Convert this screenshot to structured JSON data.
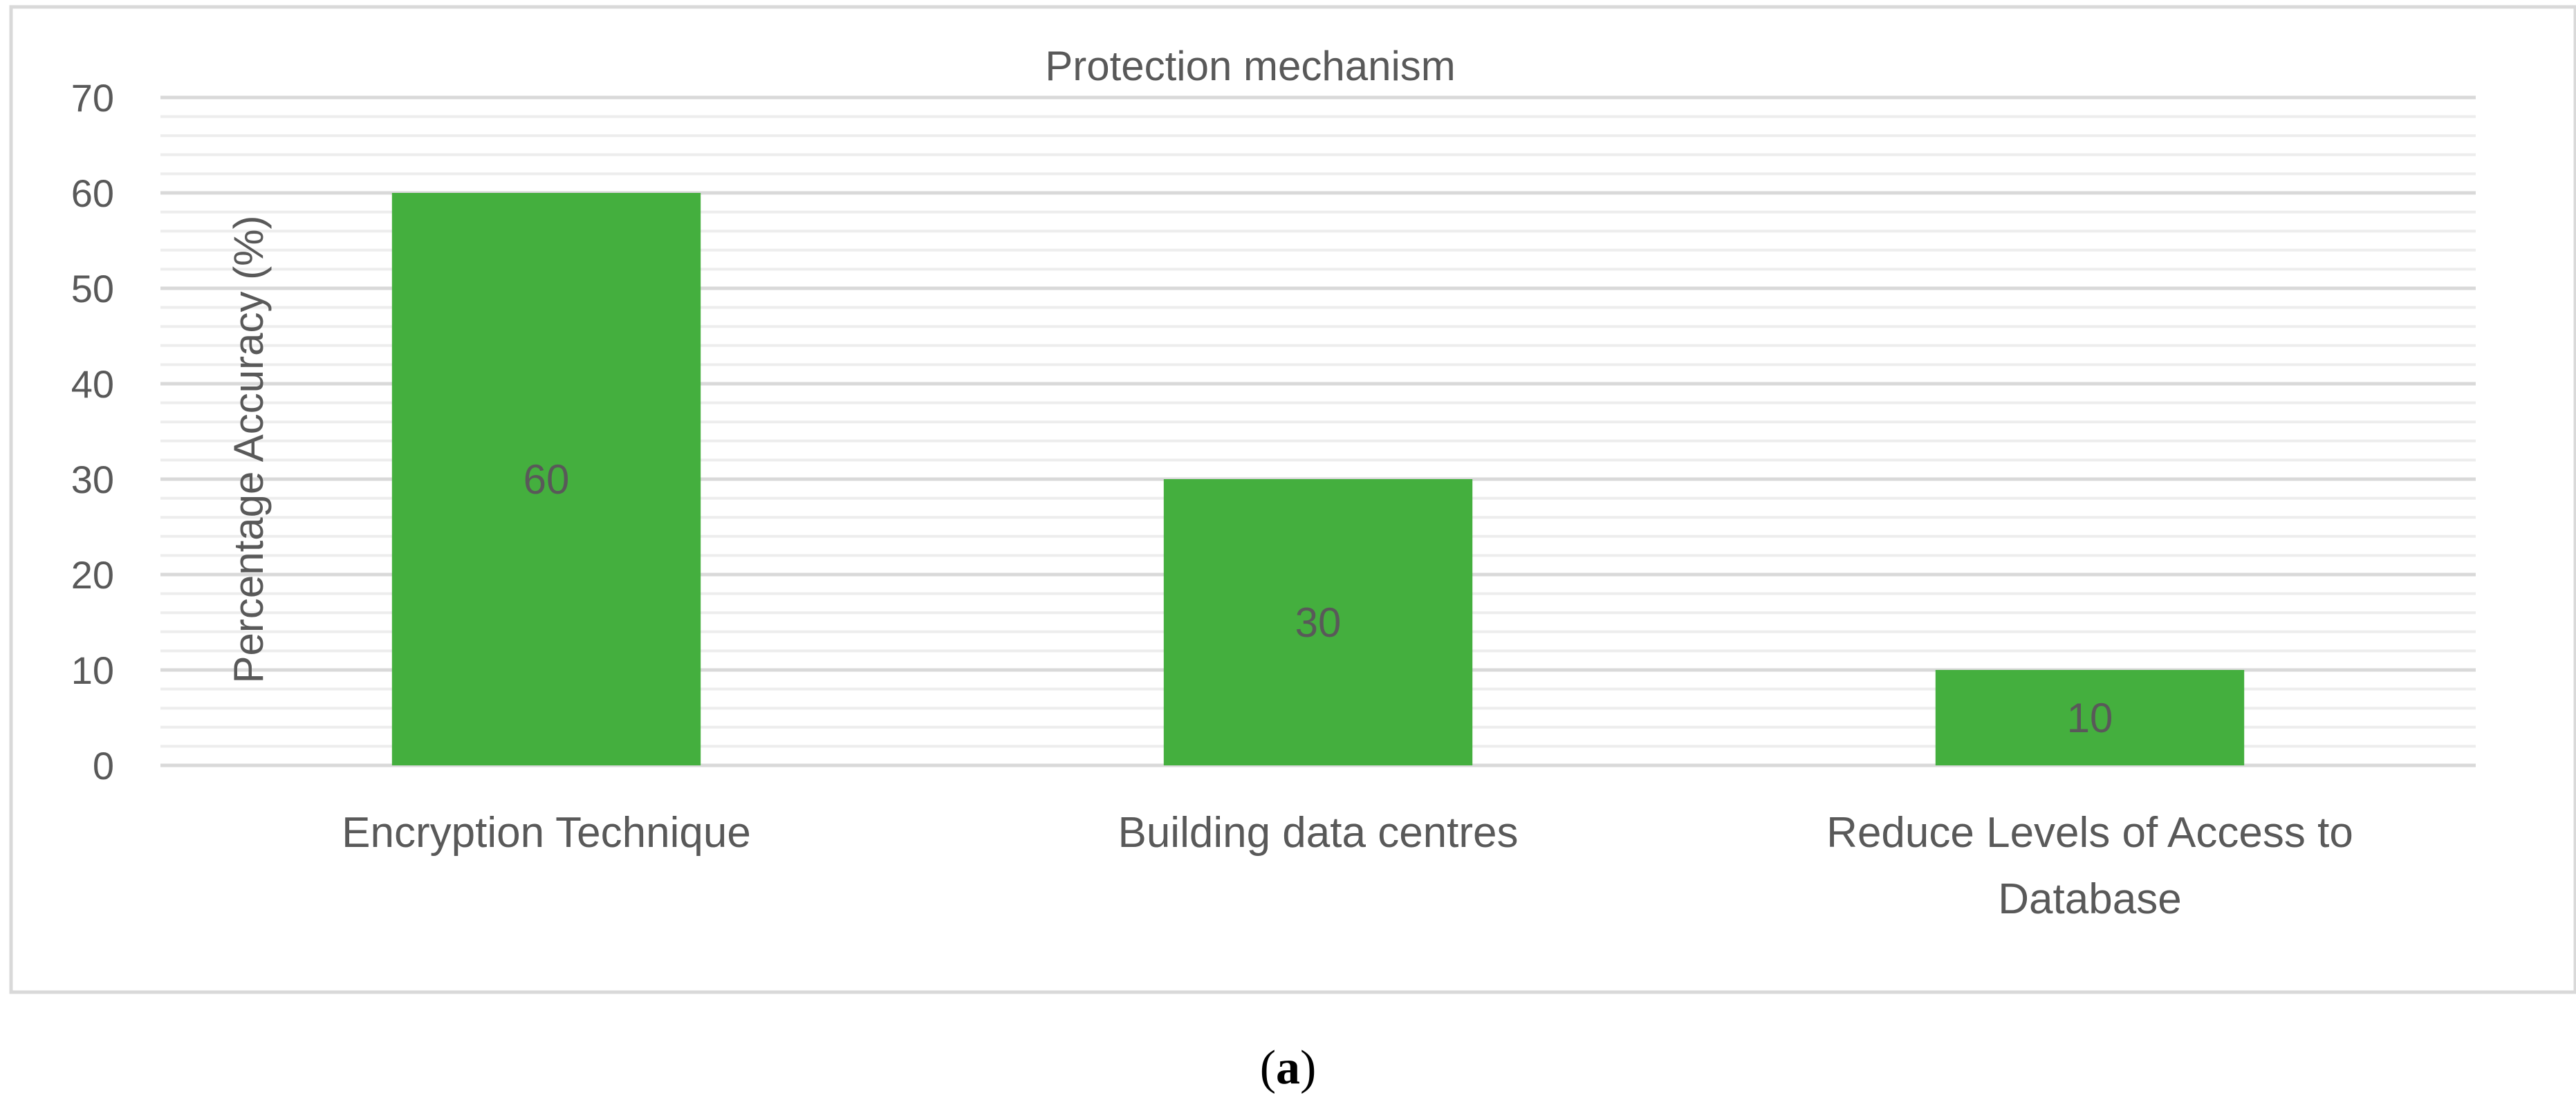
{
  "caption": {
    "open": "(",
    "letter": "a",
    "close": ")"
  },
  "chart_data": {
    "type": "bar",
    "title": "Protection mechanism",
    "xlabel": "",
    "ylabel": "Percentage Accuracy (%)",
    "categories": [
      [
        "Encryption Technique"
      ],
      [
        "Building data centres"
      ],
      [
        "Reduce Levels of Access to",
        "Database"
      ]
    ],
    "values": [
      60,
      30,
      10
    ],
    "data_labels": [
      "60",
      "30",
      "10"
    ],
    "ylim": [
      0,
      70
    ],
    "y_ticks": [
      0,
      10,
      20,
      30,
      40,
      50,
      60,
      70
    ],
    "y_tick_labels": [
      "0",
      "10",
      "20",
      "30",
      "40",
      "50",
      "60",
      "70"
    ],
    "minor_gridlines_per_major": 5,
    "grid": true,
    "legend": "none",
    "colors": {
      "bar": "#44AF3E",
      "major_grid": "#D9D9D9",
      "minor_grid": "#EDEDED",
      "text": "#595959",
      "border": "#D9D9D9"
    }
  }
}
